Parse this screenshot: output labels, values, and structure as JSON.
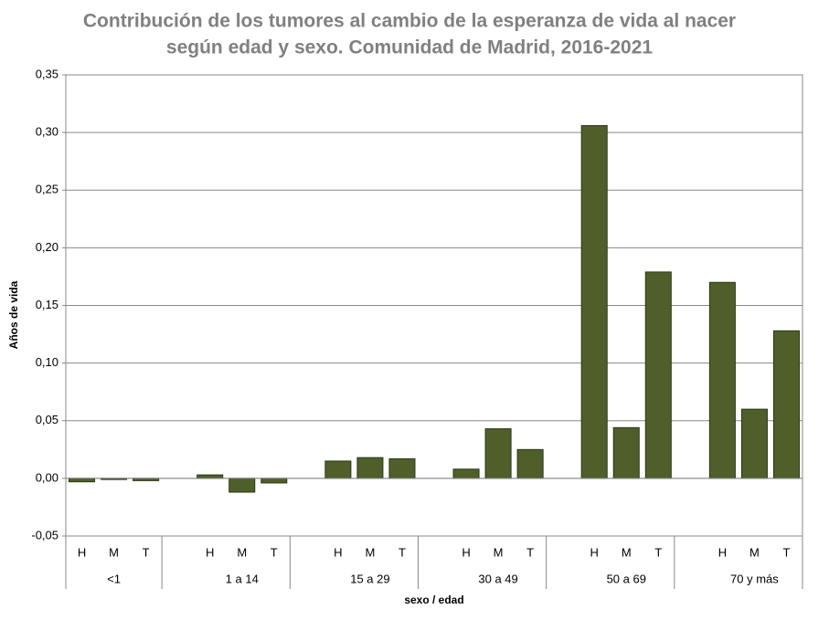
{
  "chart_data": {
    "type": "bar",
    "title": [
      "Contribución de los tumores al cambio de la esperanza de vida al nacer",
      "según edad y sexo. Comunidad de Madrid, 2016-2021"
    ],
    "x_label": "sexo / edad",
    "y_label": "Años de vida",
    "groups": [
      "<1",
      "1 a 14",
      "15 a 29",
      "30 a 49",
      "50 a 69",
      "70 y más"
    ],
    "categories": [
      "H",
      "M",
      "T",
      "H",
      "M",
      "T",
      "H",
      "M",
      "T",
      "H",
      "M",
      "T",
      "H",
      "M",
      "T",
      "H",
      "M",
      "T"
    ],
    "values": [
      -0.003,
      -0.001,
      -0.002,
      0.003,
      -0.012,
      -0.004,
      0.015,
      0.018,
      0.017,
      0.008,
      0.043,
      0.025,
      0.306,
      0.044,
      0.179,
      0.17,
      0.06,
      0.128
    ],
    "color": "#4e5f2a",
    "ylim": [
      -0.05,
      0.35
    ],
    "yticks": [
      {
        "value": -0.05,
        "label": "-0,05"
      },
      {
        "value": 0,
        "label": "0,00"
      },
      {
        "value": 0.05,
        "label": "0,05"
      },
      {
        "value": 0.1,
        "label": "0,10"
      },
      {
        "value": 0.15,
        "label": "0,15"
      },
      {
        "value": 0.2,
        "label": "0,20"
      },
      {
        "value": 0.25,
        "label": "0,25"
      },
      {
        "value": 0.3,
        "label": "0,30"
      },
      {
        "value": 0.35,
        "label": "0,35"
      }
    ],
    "grid": true
  }
}
